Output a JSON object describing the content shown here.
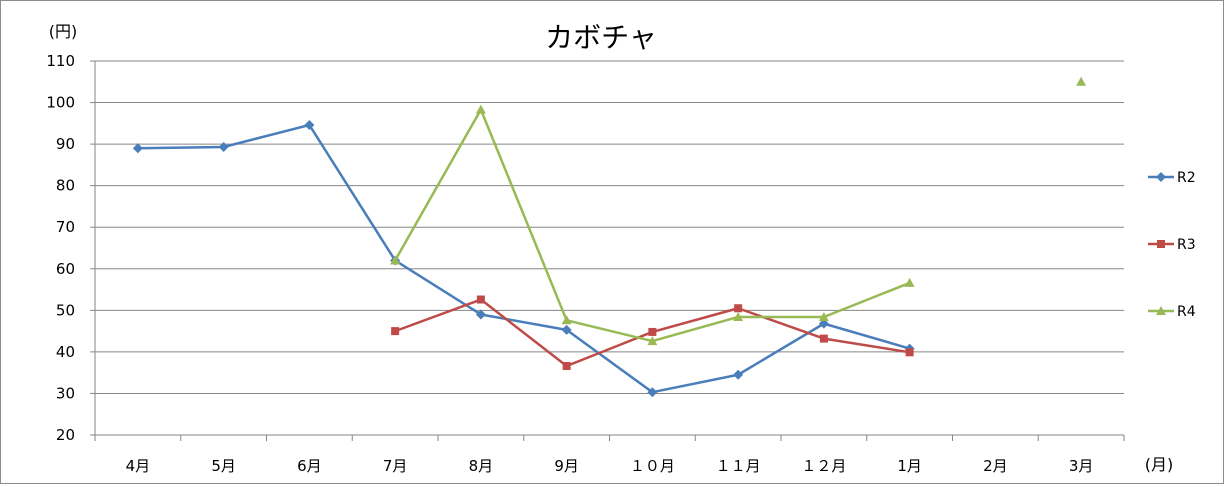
{
  "chart_data": {
    "type": "line",
    "title": "カボチャ",
    "ylabel": "(円)",
    "xlabel": "(月)",
    "ylim": [
      20,
      110
    ],
    "yticks": [
      20,
      30,
      40,
      50,
      60,
      70,
      80,
      90,
      100,
      110
    ],
    "grid": true,
    "legend_position": "right",
    "categories": [
      "4月",
      "5月",
      "6月",
      "7月",
      "8月",
      "9月",
      "１０月",
      "１１月",
      "１２月",
      "1月",
      "2月",
      "3月"
    ],
    "series": [
      {
        "name": "R2",
        "color": "#4a7ebb",
        "marker": "diamond",
        "values": [
          89,
          89.3,
          94.6,
          62,
          49,
          45.3,
          30.3,
          34.5,
          46.8,
          40.8,
          null,
          null
        ]
      },
      {
        "name": "R3",
        "color": "#be4b48",
        "marker": "square",
        "values": [
          null,
          null,
          null,
          45,
          52.6,
          36.6,
          44.8,
          50.5,
          43.2,
          39.9,
          null,
          null
        ]
      },
      {
        "name": "R4",
        "color": "#98b954",
        "marker": "triangle",
        "values": [
          null,
          null,
          null,
          62,
          98.3,
          47.6,
          42.6,
          48.4,
          48.4,
          56.6,
          null,
          105
        ]
      }
    ]
  }
}
